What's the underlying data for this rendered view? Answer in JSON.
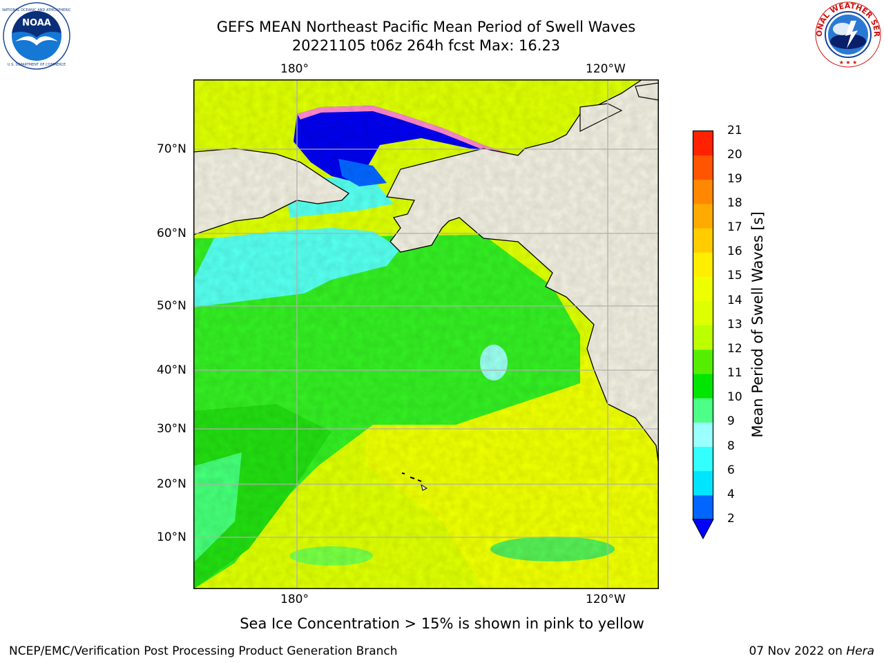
{
  "title": {
    "line1": "GEFS MEAN Northeast Pacific Mean Period of Swell Waves",
    "line2": "20221105 t06z 264h fcst   Max: 16.23"
  },
  "logos": {
    "left": "noaa-logo",
    "left_text": "NOAA",
    "left_ring_text": "NATIONAL OCEANIC AND ATMOSPHERIC ADMINISTRATION · U.S. DEPARTMENT OF COMMERCE",
    "right": "national-weather-service-logo",
    "right_ring_text": "NATIONAL WEATHER SERVICE"
  },
  "map": {
    "lon_labels": [
      "180°",
      "120°W"
    ],
    "lat_labels": [
      "70°N",
      "60°N",
      "50°N",
      "40°N",
      "30°N",
      "20°N",
      "10°N"
    ],
    "land_color": "#efedde",
    "grid_color": "#b0b0b0"
  },
  "colorbar": {
    "title": "Mean Period of Swell Waves [s]",
    "ticks": [
      "2",
      "4",
      "6",
      "8",
      "9",
      "10",
      "11",
      "12",
      "13",
      "14",
      "15",
      "16",
      "17",
      "18",
      "19",
      "20",
      "21"
    ],
    "colors": [
      "#0066ff",
      "#00e5ff",
      "#33ffff",
      "#99ffff",
      "#4dff88",
      "#00e600",
      "#55ee00",
      "#bbff00",
      "#ddff00",
      "#eeff00",
      "#ffee00",
      "#ffcc00",
      "#ffaa00",
      "#ff8800",
      "#ff5500",
      "#ff2200",
      "#ff0000"
    ],
    "extend_color": "#0000ff"
  },
  "note": "Sea Ice Concentration > 15% is shown in pink to yellow",
  "footer": {
    "left": "NCEP/EMC/Verification Post Processing Product Generation Branch",
    "right_date": "07 Nov 2022 on ",
    "right_machine": "Hera"
  }
}
